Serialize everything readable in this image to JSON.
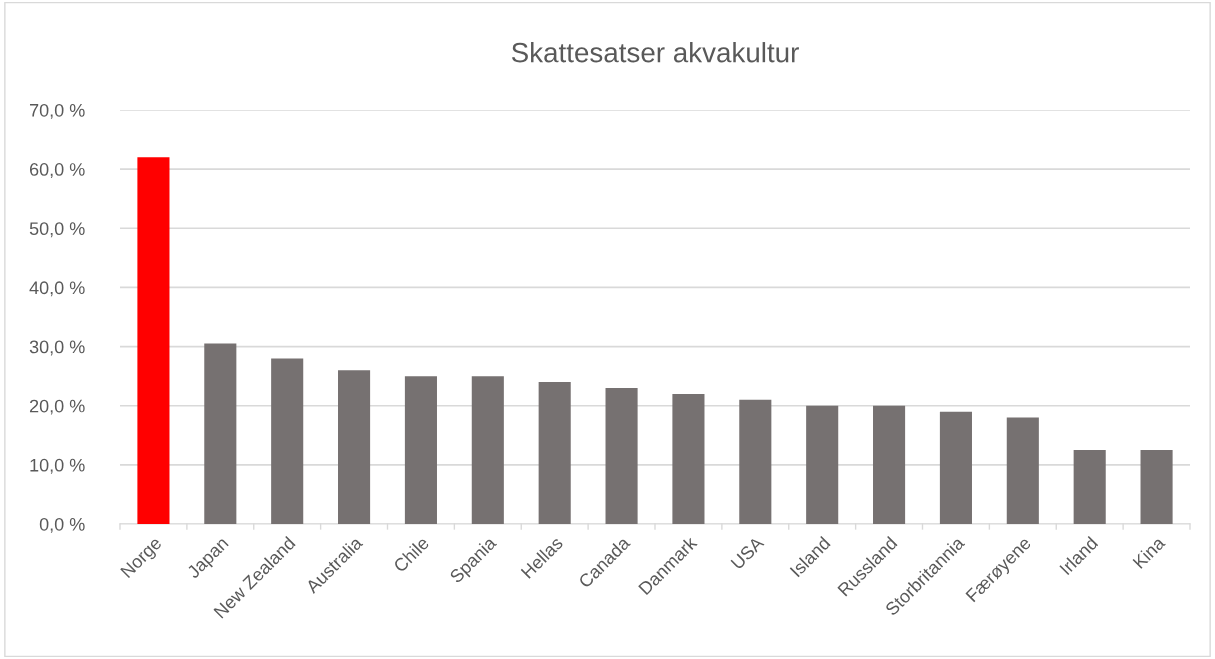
{
  "chart_data": {
    "type": "bar",
    "title": "Skattesatser akvakultur",
    "categories": [
      "Norge",
      "Japan",
      "New Zealand",
      "Australia",
      "Chile",
      "Spania",
      "Hellas",
      "Canada",
      "Danmark",
      "USA",
      "Island",
      "Russland",
      "Storbritannia",
      "Færøyene",
      "Irland",
      "Kina"
    ],
    "values": [
      62,
      30.5,
      28,
      26,
      25,
      25,
      24,
      23,
      22,
      21,
      20,
      20,
      19,
      18,
      12.5,
      12.5
    ],
    "colors": [
      "#ff0000",
      "#767171",
      "#767171",
      "#767171",
      "#767171",
      "#767171",
      "#767171",
      "#767171",
      "#767171",
      "#767171",
      "#767171",
      "#767171",
      "#767171",
      "#767171",
      "#767171",
      "#767171"
    ],
    "ylim": [
      0,
      70
    ],
    "yticks": [
      {
        "value": 0,
        "label": "0,0 %"
      },
      {
        "value": 10,
        "label": "10,0 %"
      },
      {
        "value": 20,
        "label": "20,0 %"
      },
      {
        "value": 30,
        "label": "30,0 %"
      },
      {
        "value": 40,
        "label": "40,0 %"
      },
      {
        "value": 50,
        "label": "50,0 %"
      },
      {
        "value": 60,
        "label": "60,0 %"
      },
      {
        "value": 70,
        "label": "70,0 %"
      }
    ],
    "grid": "y",
    "legend": false
  }
}
